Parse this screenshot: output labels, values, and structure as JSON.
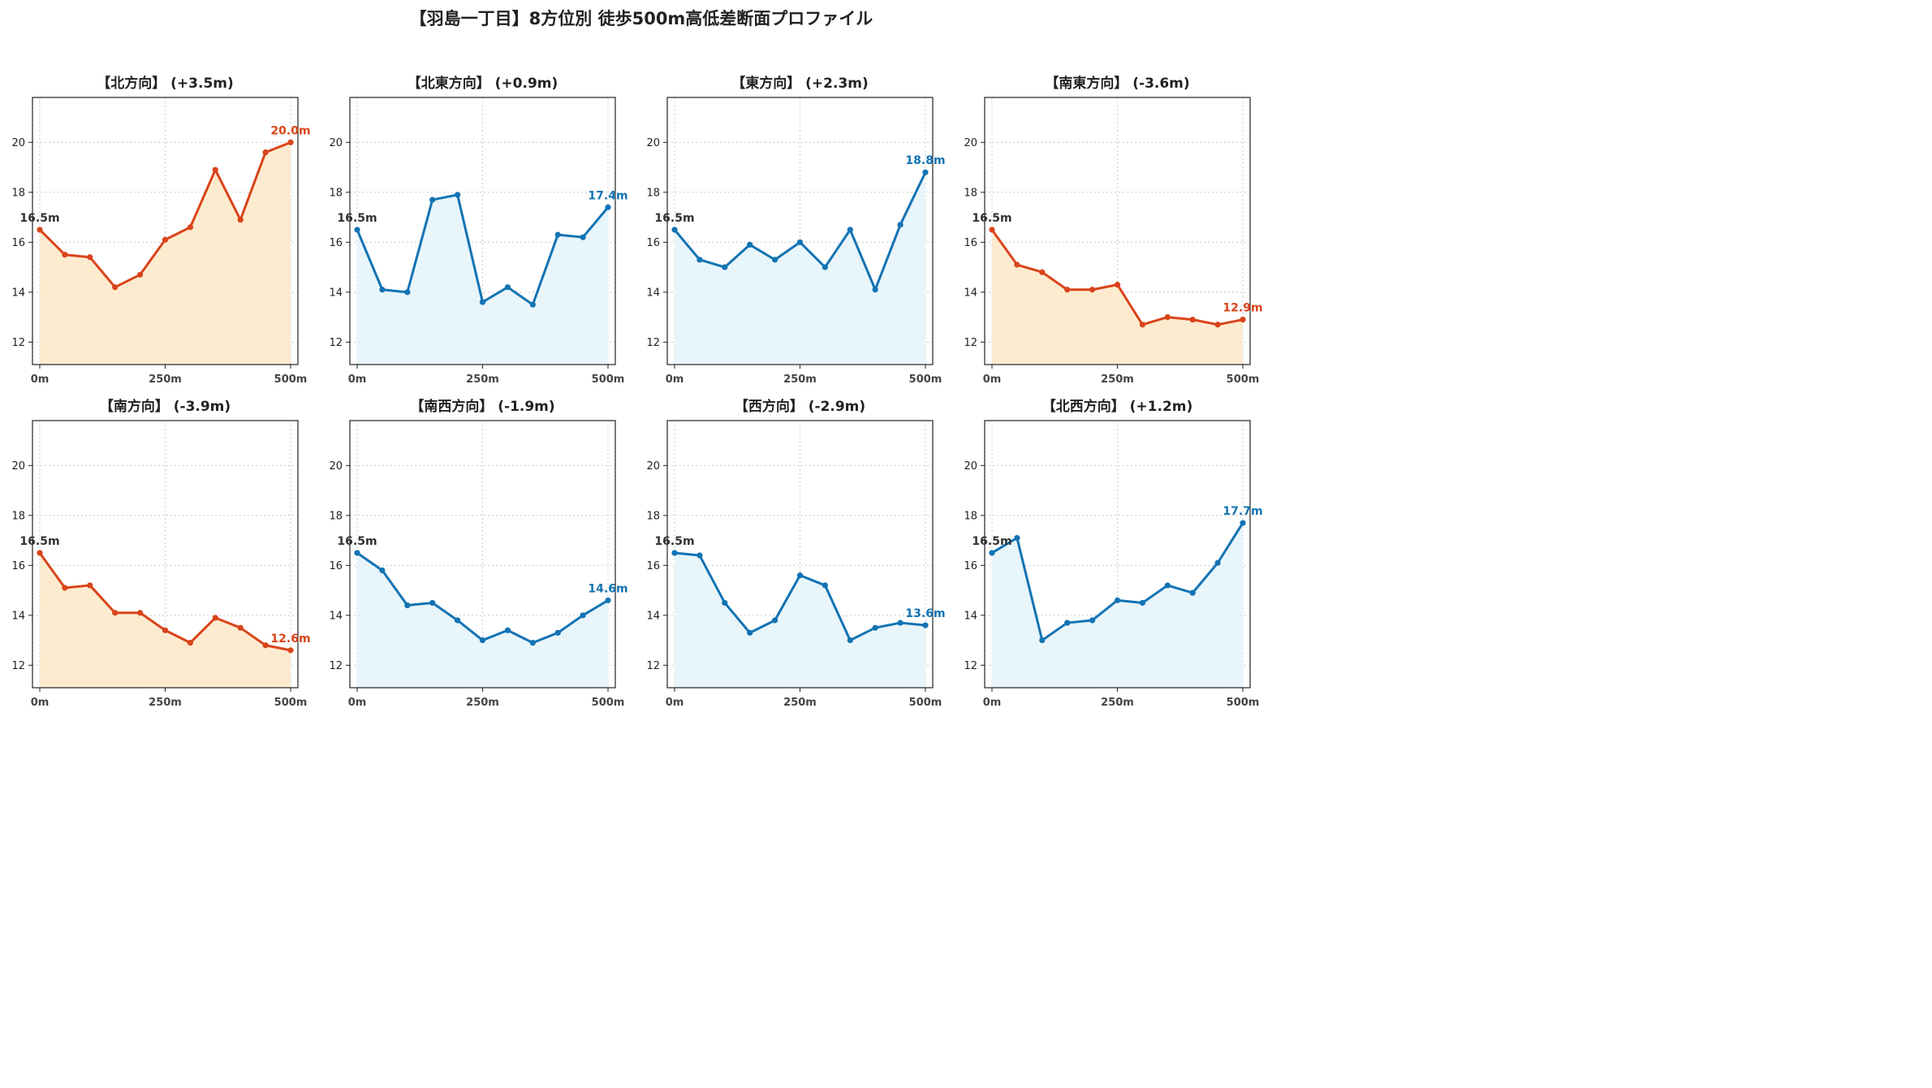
{
  "title": "【羽島一丁目】8方位別 徒歩500m高低差断面プロファイル",
  "colors": {
    "up_line": "#d9441a",
    "up_fill": "#fdebd0",
    "flat_line": "#1373b3",
    "flat_fill": "#e8f5fb",
    "start_label": "#333333",
    "grid": "#c8c8c8"
  },
  "chart_data": [
    {
      "type": "line",
      "title": "【北方向】 (+3.5m)",
      "x": [
        0,
        50,
        100,
        150,
        200,
        250,
        300,
        350,
        400,
        450,
        500
      ],
      "y": [
        16.5,
        15.5,
        15.4,
        14.2,
        14.7,
        16.1,
        16.6,
        18.9,
        16.9,
        19.6,
        20.0
      ],
      "start_label": "16.5m",
      "end_label": "20.0m",
      "style": "warm",
      "xticks": [
        "0m",
        "250m",
        "500m"
      ],
      "ylim": [
        11.1,
        21.8
      ],
      "yticks": [
        12,
        14,
        16,
        18,
        20
      ],
      "grid": true
    },
    {
      "type": "line",
      "title": "【北東方向】 (+0.9m)",
      "x": [
        0,
        50,
        100,
        150,
        200,
        250,
        300,
        350,
        400,
        450,
        500
      ],
      "y": [
        16.5,
        14.1,
        14.0,
        17.7,
        17.9,
        13.6,
        14.2,
        13.5,
        16.3,
        16.2,
        17.4
      ],
      "start_label": "16.5m",
      "end_label": "17.4m",
      "style": "cool",
      "xticks": [
        "0m",
        "250m",
        "500m"
      ],
      "ylim": [
        11.1,
        21.8
      ],
      "yticks": [
        12,
        14,
        16,
        18,
        20
      ],
      "grid": true
    },
    {
      "type": "line",
      "title": "【東方向】 (+2.3m)",
      "x": [
        0,
        50,
        100,
        150,
        200,
        250,
        300,
        350,
        400,
        450,
        500
      ],
      "y": [
        16.5,
        15.3,
        15.0,
        15.9,
        15.3,
        16.0,
        15.0,
        16.5,
        14.1,
        16.7,
        18.8
      ],
      "start_label": "16.5m",
      "end_label": "18.8m",
      "style": "cool",
      "xticks": [
        "0m",
        "250m",
        "500m"
      ],
      "ylim": [
        11.1,
        21.8
      ],
      "yticks": [
        12,
        14,
        16,
        18,
        20
      ],
      "grid": true
    },
    {
      "type": "line",
      "title": "【南東方向】 (-3.6m)",
      "x": [
        0,
        50,
        100,
        150,
        200,
        250,
        300,
        350,
        400,
        450,
        500
      ],
      "y": [
        16.5,
        15.1,
        14.8,
        14.1,
        14.1,
        14.3,
        12.7,
        13.0,
        12.9,
        12.7,
        12.9
      ],
      "start_label": "16.5m",
      "end_label": "12.9m",
      "style": "warm",
      "xticks": [
        "0m",
        "250m",
        "500m"
      ],
      "ylim": [
        11.1,
        21.8
      ],
      "yticks": [
        12,
        14,
        16,
        18,
        20
      ],
      "grid": true
    },
    {
      "type": "line",
      "title": "【南方向】 (-3.9m)",
      "x": [
        0,
        50,
        100,
        150,
        200,
        250,
        300,
        350,
        400,
        450,
        500
      ],
      "y": [
        16.5,
        15.1,
        15.2,
        14.1,
        14.1,
        13.4,
        12.9,
        13.9,
        13.5,
        12.8,
        12.6
      ],
      "start_label": "16.5m",
      "end_label": "12.6m",
      "style": "warm",
      "xticks": [
        "0m",
        "250m",
        "500m"
      ],
      "ylim": [
        11.1,
        21.8
      ],
      "yticks": [
        12,
        14,
        16,
        18,
        20
      ],
      "grid": true
    },
    {
      "type": "line",
      "title": "【南西方向】 (-1.9m)",
      "x": [
        0,
        50,
        100,
        150,
        200,
        250,
        300,
        350,
        400,
        450,
        500
      ],
      "y": [
        16.5,
        15.8,
        14.4,
        14.5,
        13.8,
        13.0,
        13.4,
        12.9,
        13.3,
        14.0,
        14.6
      ],
      "start_label": "16.5m",
      "end_label": "14.6m",
      "style": "cool",
      "xticks": [
        "0m",
        "250m",
        "500m"
      ],
      "ylim": [
        11.1,
        21.8
      ],
      "yticks": [
        12,
        14,
        16,
        18,
        20
      ],
      "grid": true
    },
    {
      "type": "line",
      "title": "【西方向】 (-2.9m)",
      "x": [
        0,
        50,
        100,
        150,
        200,
        250,
        300,
        350,
        400,
        450,
        500
      ],
      "y": [
        16.5,
        16.4,
        14.5,
        13.3,
        13.8,
        15.6,
        15.2,
        13.0,
        13.5,
        13.7,
        13.6
      ],
      "start_label": "16.5m",
      "end_label": "13.6m",
      "style": "cool",
      "xticks": [
        "0m",
        "250m",
        "500m"
      ],
      "ylim": [
        11.1,
        21.8
      ],
      "yticks": [
        12,
        14,
        16,
        18,
        20
      ],
      "grid": true
    },
    {
      "type": "line",
      "title": "【北西方向】 (+1.2m)",
      "x": [
        0,
        50,
        100,
        150,
        200,
        250,
        300,
        350,
        400,
        450,
        500
      ],
      "y": [
        16.5,
        17.1,
        13.0,
        13.7,
        13.8,
        14.6,
        14.5,
        15.2,
        14.9,
        16.1,
        17.7
      ],
      "start_label": "16.5m",
      "end_label": "17.7m",
      "style": "cool",
      "xticks": [
        "0m",
        "250m",
        "500m"
      ],
      "ylim": [
        11.1,
        21.8
      ],
      "yticks": [
        12,
        14,
        16,
        18,
        20
      ],
      "grid": true
    }
  ]
}
